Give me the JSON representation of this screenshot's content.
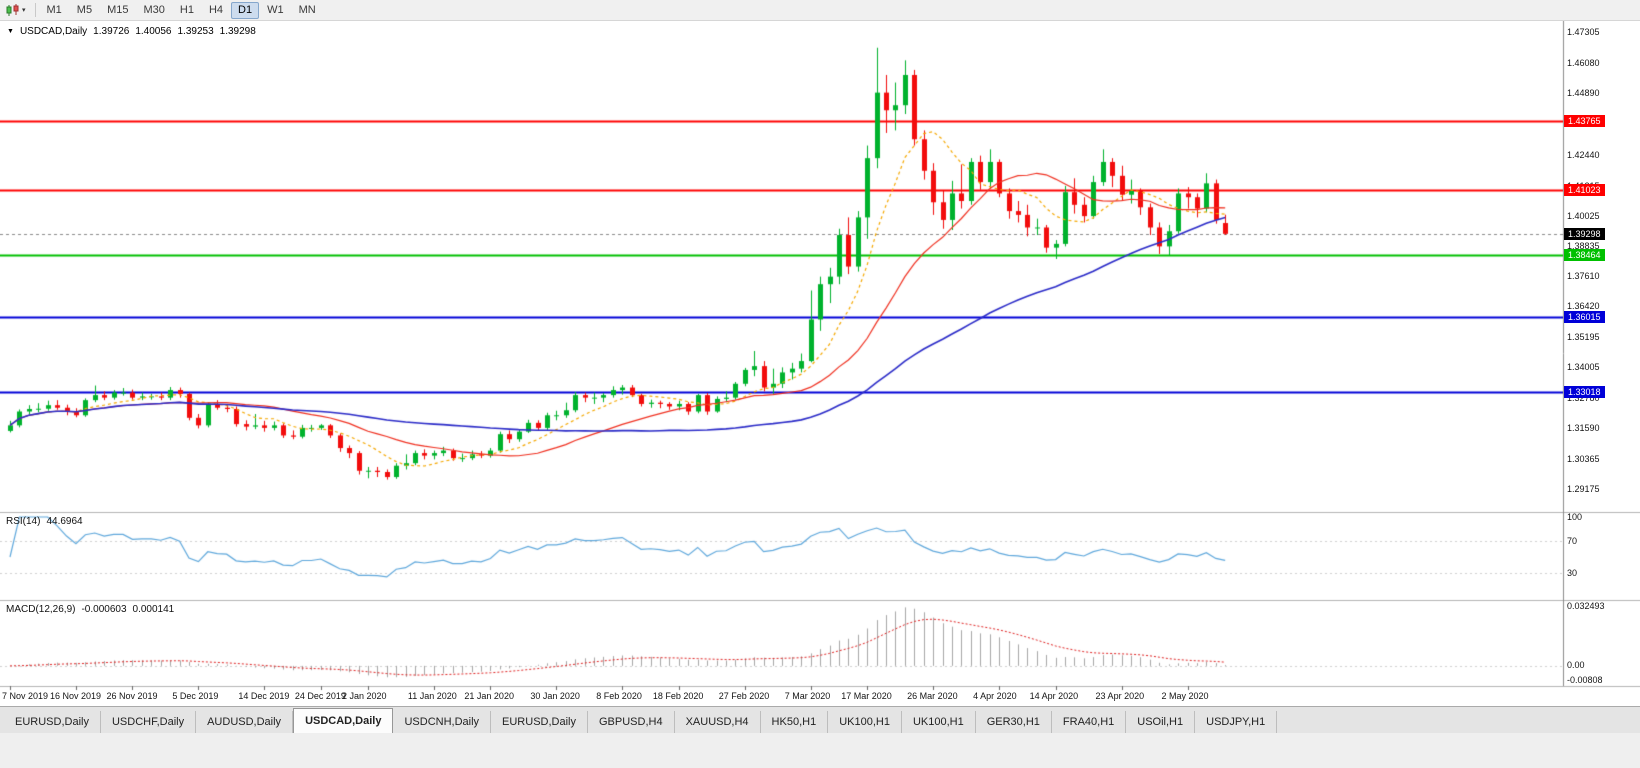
{
  "icons": {
    "symbol_marker": "▼",
    "toolbar_caret": "▾"
  },
  "toolbar": {
    "timeframes": [
      {
        "label": "M1",
        "active": false
      },
      {
        "label": "M5",
        "active": false
      },
      {
        "label": "M15",
        "active": false
      },
      {
        "label": "M30",
        "active": false
      },
      {
        "label": "H1",
        "active": false
      },
      {
        "label": "H4",
        "active": false
      },
      {
        "label": "D1",
        "active": true
      },
      {
        "label": "W1",
        "active": false
      },
      {
        "label": "MN",
        "active": false
      }
    ]
  },
  "chart_header": {
    "symbol": "USDCAD,Daily",
    "open": "1.39726",
    "high": "1.40056",
    "low": "1.39253",
    "close": "1.39298"
  },
  "bottom_tabs": [
    {
      "label": "EURUSD,Daily",
      "active": false
    },
    {
      "label": "USDCHF,Daily",
      "active": false
    },
    {
      "label": "AUDUSD,Daily",
      "active": false
    },
    {
      "label": "USDCAD,Daily",
      "active": true
    },
    {
      "label": "USDCNH,Daily",
      "active": false
    },
    {
      "label": "EURUSD,Daily",
      "active": false
    },
    {
      "label": "GBPUSD,H4",
      "active": false
    },
    {
      "label": "XAUUSD,H4",
      "active": false
    },
    {
      "label": "HK50,H1",
      "active": false
    },
    {
      "label": "UK100,H1",
      "active": false
    },
    {
      "label": "UK100,H1",
      "active": false
    },
    {
      "label": "GER30,H1",
      "active": false
    },
    {
      "label": "FRA40,H1",
      "active": false
    },
    {
      "label": "USOil,H1",
      "active": false
    },
    {
      "label": "USDJPY,H1",
      "active": false
    }
  ],
  "chart_data": {
    "type": "candlestick",
    "symbol": "USDCAD",
    "timeframe": "Daily",
    "up_color": "#00B22D",
    "down_color": "#F20C0C",
    "ylim": [
      1.28303,
      1.47741
    ],
    "y_ticks": [
      "1.47305",
      "1.46080",
      "1.44890",
      "1.43665",
      "1.42440",
      "1.41215",
      "1.40025",
      "1.38835",
      "1.37610",
      "1.36420",
      "1.35195",
      "1.34005",
      "1.32780",
      "1.31590",
      "1.30365",
      "1.29175"
    ],
    "x_labels": [
      {
        "text": "7 Nov 2019",
        "bar": 0
      },
      {
        "text": "16 Nov 2019",
        "bar": 7
      },
      {
        "text": "26 Nov 2019",
        "bar": 13
      },
      {
        "text": "5 Dec 2019",
        "bar": 20
      },
      {
        "text": "14 Dec 2019",
        "bar": 27
      },
      {
        "text": "24 Dec 2019",
        "bar": 33
      },
      {
        "text": "2 Jan 2020",
        "bar": 38
      },
      {
        "text": "11 Jan 2020",
        "bar": 45
      },
      {
        "text": "21 Jan 2020",
        "bar": 51
      },
      {
        "text": "30 Jan 2020",
        "bar": 58
      },
      {
        "text": "8 Feb 2020",
        "bar": 65
      },
      {
        "text": "18 Feb 2020",
        "bar": 71
      },
      {
        "text": "27 Feb 2020",
        "bar": 78
      },
      {
        "text": "7 Mar 2020",
        "bar": 85
      },
      {
        "text": "17 Mar 2020",
        "bar": 91
      },
      {
        "text": "26 Mar 2020",
        "bar": 98
      },
      {
        "text": "4 Apr 2020",
        "bar": 105
      },
      {
        "text": "14 Apr 2020",
        "bar": 111
      },
      {
        "text": "23 Apr 2020",
        "bar": 118
      },
      {
        "text": "2 May 2020",
        "bar": 125
      }
    ],
    "horizontal_lines": [
      {
        "price": 1.43765,
        "label": "1.43765",
        "color": "#FF0000"
      },
      {
        "price": 1.41023,
        "label": "1.41023",
        "color": "#FF0000"
      },
      {
        "price": 1.38464,
        "label": "1.38464",
        "color": "#00C000"
      },
      {
        "price": 1.36015,
        "label": "1.36015",
        "color": "#0000D8"
      },
      {
        "price": 1.33018,
        "label": "1.33018",
        "color": "#0000D8"
      }
    ],
    "current_price": {
      "price": 1.39298,
      "label": "1.39298",
      "color": "#000000",
      "line_color": "#8a8a8a"
    },
    "moving_averages": [
      {
        "period": 8,
        "color": "#F5A800",
        "style": "dash"
      },
      {
        "period": 20,
        "color": "#F03020",
        "style": "solid"
      },
      {
        "period": 50,
        "color": "#2B2BC8",
        "style": "solid"
      }
    ],
    "indicators": {
      "rsi": {
        "label": "RSI(14)",
        "value": "44.6964",
        "period": 14,
        "color": "#5FA8DC",
        "levels": [
          100,
          70,
          30
        ]
      },
      "macd": {
        "label": "MACD(12,26,9)",
        "value_main": "-0.000603",
        "value_signal": "0.000141",
        "fast": 12,
        "slow": 26,
        "signal": 9,
        "hist_color": "#A6A6A6",
        "signal_color": "#E02020",
        "scale_max": 0.032493,
        "scale_min": -0.00808,
        "axis_labels": [
          "0.032493",
          "0.00",
          "-0.00808"
        ]
      }
    },
    "ohlc": [
      [
        1.3148,
        1.3188,
        1.3142,
        1.317
      ],
      [
        1.317,
        1.3233,
        1.3162,
        1.3225
      ],
      [
        1.3225,
        1.325,
        1.3213,
        1.3235
      ],
      [
        1.3235,
        1.3258,
        1.3222,
        1.3236
      ],
      [
        1.3236,
        1.3268,
        1.3228,
        1.325
      ],
      [
        1.325,
        1.327,
        1.3232,
        1.324
      ],
      [
        1.324,
        1.3252,
        1.321,
        1.3225
      ],
      [
        1.3225,
        1.3238,
        1.3202,
        1.321
      ],
      [
        1.321,
        1.3277,
        1.3204,
        1.327
      ],
      [
        1.327,
        1.3328,
        1.3262,
        1.329
      ],
      [
        1.329,
        1.3305,
        1.327,
        1.328
      ],
      [
        1.328,
        1.331,
        1.3272,
        1.33
      ],
      [
        1.33,
        1.3318,
        1.3288,
        1.33
      ],
      [
        1.33,
        1.3312,
        1.3272,
        1.328
      ],
      [
        1.328,
        1.33,
        1.327,
        1.3285
      ],
      [
        1.3285,
        1.3295,
        1.3272,
        1.3285
      ],
      [
        1.3285,
        1.33,
        1.327,
        1.328
      ],
      [
        1.328,
        1.3322,
        1.327,
        1.331
      ],
      [
        1.331,
        1.332,
        1.328,
        1.3295
      ],
      [
        1.3295,
        1.33,
        1.319,
        1.32
      ],
      [
        1.32,
        1.3215,
        1.3158,
        1.317
      ],
      [
        1.317,
        1.326,
        1.3162,
        1.3255
      ],
      [
        1.3255,
        1.327,
        1.3232,
        1.324
      ],
      [
        1.324,
        1.3255,
        1.3222,
        1.3235
      ],
      [
        1.3235,
        1.3245,
        1.3165,
        1.3175
      ],
      [
        1.3175,
        1.319,
        1.315,
        1.3165
      ],
      [
        1.3165,
        1.3215,
        1.3155,
        1.317
      ],
      [
        1.317,
        1.3188,
        1.3145,
        1.316
      ],
      [
        1.316,
        1.3185,
        1.315,
        1.317
      ],
      [
        1.317,
        1.3178,
        1.312,
        1.313
      ],
      [
        1.313,
        1.315,
        1.3115,
        1.3125
      ],
      [
        1.3125,
        1.3172,
        1.3118,
        1.316
      ],
      [
        1.316,
        1.3172,
        1.3145,
        1.316
      ],
      [
        1.316,
        1.3175,
        1.3152,
        1.317
      ],
      [
        1.317,
        1.3175,
        1.312,
        1.313
      ],
      [
        1.313,
        1.3138,
        1.3065,
        1.308
      ],
      [
        1.308,
        1.309,
        1.304,
        1.306
      ],
      [
        1.306,
        1.3068,
        1.2975,
        1.299
      ],
      [
        1.299,
        1.3005,
        1.296,
        1.299
      ],
      [
        1.299,
        1.3005,
        1.2965,
        1.2985
      ],
      [
        1.2985,
        1.2995,
        1.2955,
        1.2965
      ],
      [
        1.2965,
        1.302,
        1.2958,
        1.301
      ],
      [
        1.301,
        1.3055,
        1.2995,
        1.302
      ],
      [
        1.302,
        1.307,
        1.3012,
        1.306
      ],
      [
        1.306,
        1.3075,
        1.3035,
        1.305
      ],
      [
        1.305,
        1.307,
        1.3035,
        1.306
      ],
      [
        1.306,
        1.3085,
        1.3048,
        1.307
      ],
      [
        1.307,
        1.3078,
        1.303,
        1.304
      ],
      [
        1.304,
        1.3058,
        1.3025,
        1.304
      ],
      [
        1.304,
        1.307,
        1.3032,
        1.3055
      ],
      [
        1.3055,
        1.3068,
        1.304,
        1.305
      ],
      [
        1.305,
        1.308,
        1.3042,
        1.307
      ],
      [
        1.307,
        1.3145,
        1.3062,
        1.3135
      ],
      [
        1.3135,
        1.315,
        1.31,
        1.3115
      ],
      [
        1.3115,
        1.3155,
        1.3105,
        1.3145
      ],
      [
        1.3145,
        1.3192,
        1.314,
        1.318
      ],
      [
        1.318,
        1.319,
        1.315,
        1.316
      ],
      [
        1.316,
        1.322,
        1.3152,
        1.321
      ],
      [
        1.321,
        1.3228,
        1.319,
        1.321
      ],
      [
        1.321,
        1.326,
        1.32,
        1.323
      ],
      [
        1.323,
        1.3302,
        1.3222,
        1.329
      ],
      [
        1.329,
        1.33,
        1.3262,
        1.328
      ],
      [
        1.328,
        1.33,
        1.3255,
        1.328
      ],
      [
        1.328,
        1.3298,
        1.3262,
        1.329
      ],
      [
        1.329,
        1.3325,
        1.328,
        1.331
      ],
      [
        1.331,
        1.333,
        1.3292,
        1.332
      ],
      [
        1.332,
        1.333,
        1.3282,
        1.329
      ],
      [
        1.329,
        1.3295,
        1.3245,
        1.3255
      ],
      [
        1.3255,
        1.3272,
        1.324,
        1.326
      ],
      [
        1.326,
        1.3268,
        1.3238,
        1.3255
      ],
      [
        1.3255,
        1.3262,
        1.3232,
        1.3245
      ],
      [
        1.3245,
        1.3268,
        1.323,
        1.3255
      ],
      [
        1.3255,
        1.3262,
        1.3212,
        1.3225
      ],
      [
        1.3225,
        1.3295,
        1.3218,
        1.329
      ],
      [
        1.329,
        1.3298,
        1.3212,
        1.3225
      ],
      [
        1.3225,
        1.3285,
        1.322,
        1.3275
      ],
      [
        1.3275,
        1.3305,
        1.3262,
        1.328
      ],
      [
        1.328,
        1.3342,
        1.3272,
        1.3335
      ],
      [
        1.3335,
        1.3398,
        1.3325,
        1.339
      ],
      [
        1.339,
        1.3465,
        1.3365,
        1.3405
      ],
      [
        1.3405,
        1.3425,
        1.3305,
        1.332
      ],
      [
        1.332,
        1.3395,
        1.3295,
        1.3335
      ],
      [
        1.3335,
        1.34,
        1.3318,
        1.338
      ],
      [
        1.338,
        1.3418,
        1.3352,
        1.3395
      ],
      [
        1.3395,
        1.3455,
        1.338,
        1.3425
      ],
      [
        1.3425,
        1.3705,
        1.342,
        1.359
      ],
      [
        1.359,
        1.376,
        1.3545,
        1.373
      ],
      [
        1.373,
        1.3795,
        1.3655,
        1.376
      ],
      [
        1.376,
        1.395,
        1.373,
        1.3925
      ],
      [
        1.3925,
        1.3995,
        1.377,
        1.38
      ],
      [
        1.38,
        1.402,
        1.378,
        1.3995
      ],
      [
        1.3995,
        1.428,
        1.391,
        1.423
      ],
      [
        1.423,
        1.4668,
        1.419,
        1.449
      ],
      [
        1.449,
        1.456,
        1.433,
        1.442
      ],
      [
        1.442,
        1.453,
        1.434,
        1.444
      ],
      [
        1.444,
        1.4618,
        1.4405,
        1.456
      ],
      [
        1.456,
        1.458,
        1.428,
        1.4305
      ],
      [
        1.4305,
        1.434,
        1.4145,
        1.418
      ],
      [
        1.418,
        1.421,
        1.4005,
        1.4055
      ],
      [
        1.4055,
        1.41,
        1.395,
        1.3985
      ],
      [
        1.3985,
        1.414,
        1.3945,
        1.409
      ],
      [
        1.409,
        1.4205,
        1.403,
        1.406
      ],
      [
        1.406,
        1.423,
        1.4045,
        1.4215
      ],
      [
        1.4215,
        1.424,
        1.4105,
        1.4135
      ],
      [
        1.4135,
        1.4265,
        1.411,
        1.4215
      ],
      [
        1.4215,
        1.4225,
        1.4075,
        1.409
      ],
      [
        1.409,
        1.411,
        1.399,
        1.402
      ],
      [
        1.402,
        1.406,
        1.3975,
        1.4005
      ],
      [
        1.4005,
        1.4045,
        1.392,
        1.3955
      ],
      [
        1.3955,
        1.399,
        1.3925,
        1.3955
      ],
      [
        1.3955,
        1.3965,
        1.3855,
        1.3875
      ],
      [
        1.3875,
        1.3905,
        1.383,
        1.389
      ],
      [
        1.389,
        1.412,
        1.388,
        1.4095
      ],
      [
        1.4095,
        1.415,
        1.401,
        1.4045
      ],
      [
        1.4045,
        1.4075,
        1.3975,
        1.4
      ],
      [
        1.4,
        1.416,
        1.399,
        1.4135
      ],
      [
        1.4135,
        1.4265,
        1.412,
        1.4215
      ],
      [
        1.4215,
        1.423,
        1.4115,
        1.416
      ],
      [
        1.416,
        1.42,
        1.406,
        1.4085
      ],
      [
        1.4085,
        1.4145,
        1.405,
        1.41
      ],
      [
        1.41,
        1.411,
        1.4005,
        1.4035
      ],
      [
        1.4035,
        1.405,
        1.3925,
        1.3955
      ],
      [
        1.3955,
        1.3975,
        1.385,
        1.388
      ],
      [
        1.388,
        1.3965,
        1.3845,
        1.394
      ],
      [
        1.394,
        1.411,
        1.393,
        1.409
      ],
      [
        1.409,
        1.4115,
        1.403,
        1.4075
      ],
      [
        1.4075,
        1.409,
        1.3995,
        1.403
      ],
      [
        1.403,
        1.417,
        1.4015,
        1.413
      ],
      [
        1.413,
        1.4145,
        1.397,
        1.3985
      ],
      [
        1.39726,
        1.40056,
        1.39253,
        1.39298
      ]
    ]
  }
}
